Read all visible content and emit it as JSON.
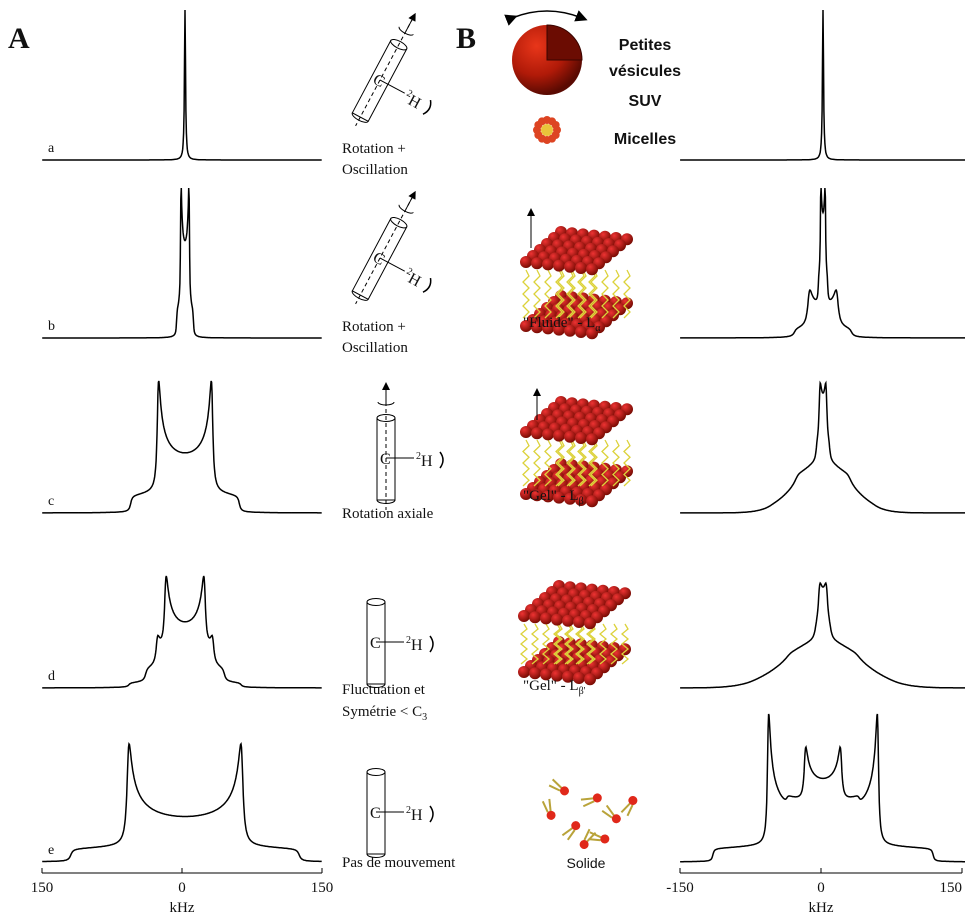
{
  "panels": {
    "left": "A",
    "right": "B"
  },
  "rows": [
    {
      "letter": "a",
      "motion": [
        "Rotation +",
        "Oscillation"
      ]
    },
    {
      "letter": "b",
      "motion": [
        "Rotation +",
        "Oscillation"
      ],
      "phase": {
        "text": "\"Fluide\" - L",
        "sub": "α"
      }
    },
    {
      "letter": "c",
      "motion": [
        "Rotation axiale"
      ],
      "phase": {
        "text": "\"Gel\" - L",
        "sub": "β"
      }
    },
    {
      "letter": "d",
      "motion": [
        "Fluctuation et",
        "Symétrie < C"
      ],
      "motion_sub": "3",
      "phase": {
        "text": "\"Gel\" - L",
        "sub": "β'"
      }
    },
    {
      "letter": "e",
      "motion": [
        "Pas de mouvement"
      ],
      "phase": {
        "text": "Solide"
      }
    }
  ],
  "vesicles": {
    "lines": [
      "Petites",
      "vésicules",
      "SUV",
      "Micelles"
    ]
  },
  "molecule": {
    "carbon": "C",
    "isotope": "2",
    "nucleus": "H"
  },
  "left_axis": {
    "ticks": [
      "150",
      "0",
      "150"
    ],
    "unit": "kHz"
  },
  "right_axis": {
    "ticks": [
      "-150",
      "0",
      "150"
    ],
    "unit": "kHz"
  }
}
